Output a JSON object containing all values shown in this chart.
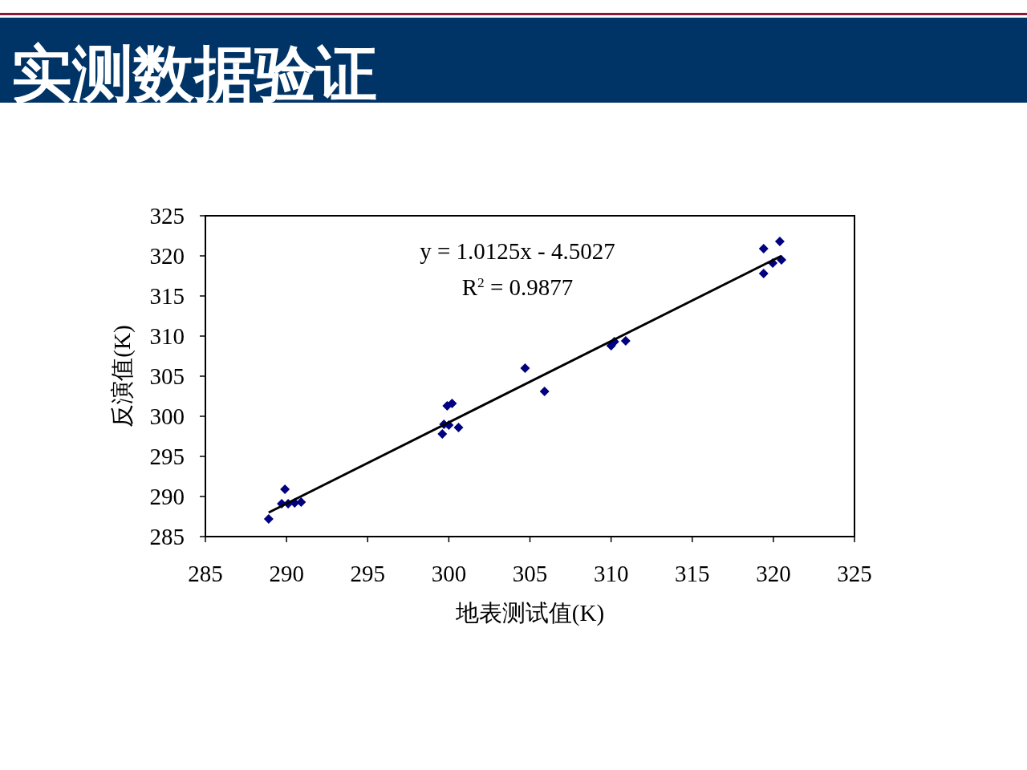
{
  "chart_data": {
    "type": "scatter",
    "title": "实测数据验证",
    "xlabel": "地表测试值(K)",
    "ylabel": "反演值(K)",
    "annotations": [
      "y = 1.0125x - 4.5027",
      "R$^{2}$ = 0.9877"
    ],
    "xlim": [
      285,
      325
    ],
    "ylim": [
      285,
      325
    ],
    "xticks": [
      285,
      290,
      295,
      300,
      305,
      310,
      315,
      320,
      325
    ],
    "yticks": [
      285,
      290,
      295,
      300,
      305,
      310,
      315,
      320,
      325
    ],
    "grid": false,
    "marker": "diamond",
    "series": [
      {
        "color": "#000080",
        "x": [
          288.9,
          289.9,
          289.7,
          290.1,
          290.5,
          290.9,
          299.6,
          299.7,
          299.9,
          300.2,
          300.0,
          300.6,
          304.7,
          305.9,
          310.0,
          310.2,
          310.9,
          319.4,
          320.4,
          319.4,
          319.96,
          320.5
        ],
        "values": [
          287.2,
          290.9,
          289.1,
          289.1,
          289.2,
          289.3,
          297.8,
          299.0,
          301.3,
          301.6,
          298.9,
          298.6,
          306.0,
          303.1,
          308.8,
          309.3,
          309.4,
          320.9,
          321.8,
          317.8,
          319.1,
          319.5
        ]
      },
      {
        "type": "line",
        "color": "#000000",
        "line_style": "solid",
        "marker": "none",
        "x": [
          288.9,
          320.5
        ],
        "values": [
          288.0,
          320.0
        ]
      }
    ]
  }
}
